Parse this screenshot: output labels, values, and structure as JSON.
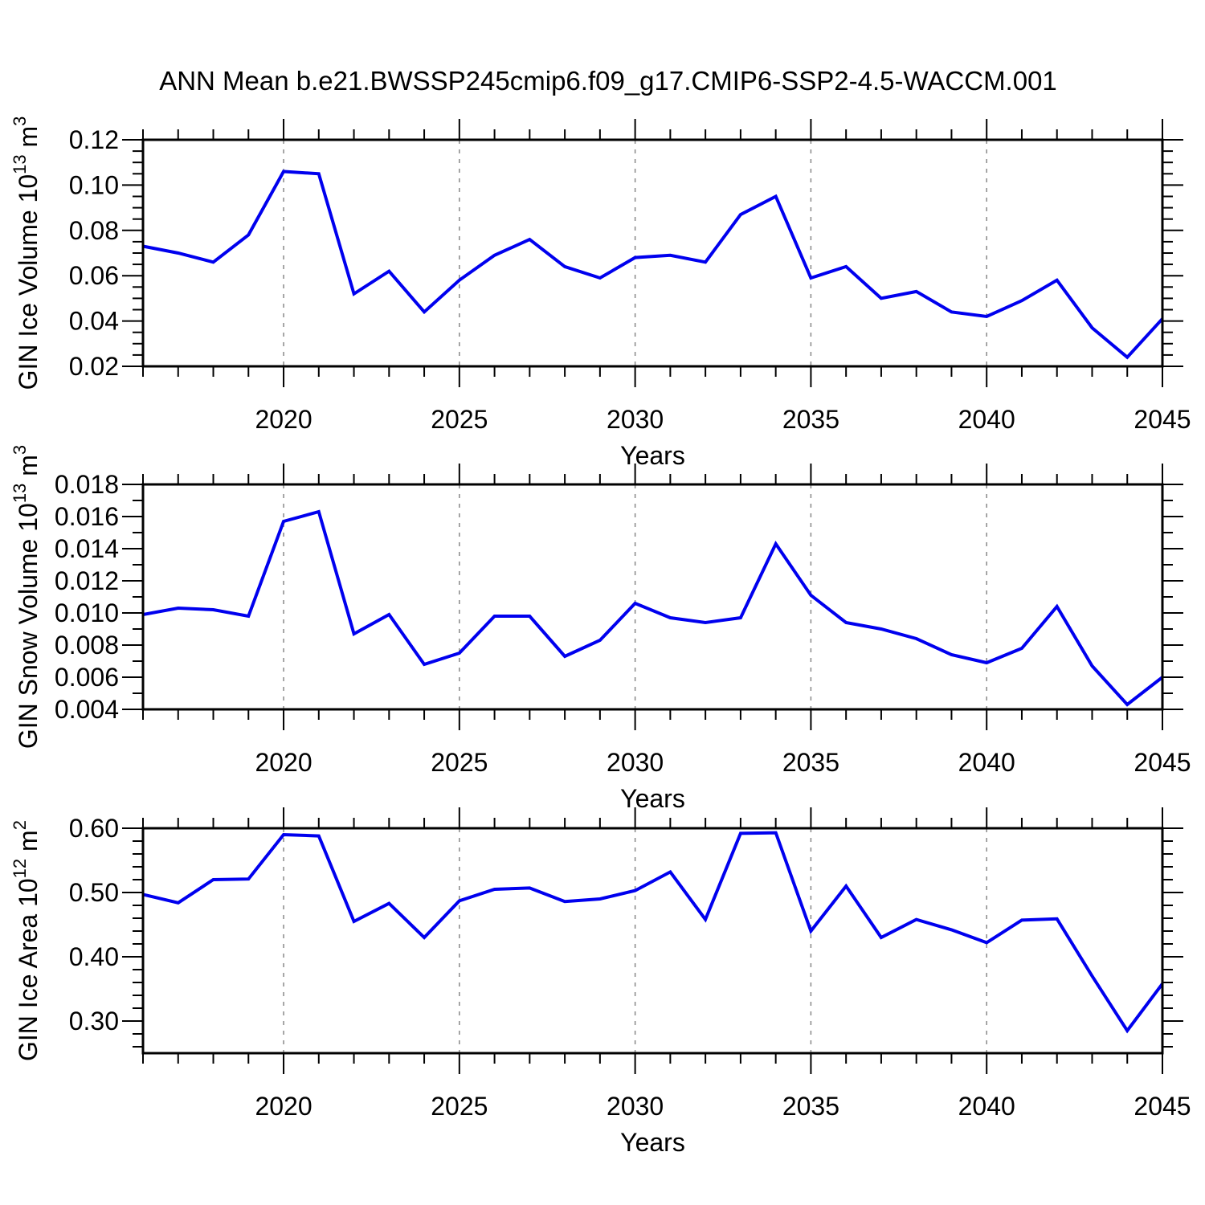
{
  "title": "ANN Mean b.e21.BWSSP245cmip6.f09_g17.CMIP6-SSP2-4.5-WACCM.001",
  "line_color": "#0000ee",
  "axis_color": "#000000",
  "grid_color": "#888888",
  "chart_data": [
    {
      "id": "ice-volume",
      "type": "line",
      "title": "",
      "ylabel": "GIN Ice Volume 10^13 m^3",
      "ylabel_parts": [
        [
          "GIN Ice Volume 10",
          false
        ],
        [
          "13",
          true
        ],
        [
          " m",
          false
        ],
        [
          "3",
          true
        ]
      ],
      "xlabel": "Years",
      "x": [
        2016,
        2017,
        2018,
        2019,
        2020,
        2021,
        2022,
        2023,
        2024,
        2025,
        2026,
        2027,
        2028,
        2029,
        2030,
        2031,
        2032,
        2033,
        2034,
        2035,
        2036,
        2037,
        2038,
        2039,
        2040,
        2041,
        2042,
        2043,
        2044,
        2045
      ],
      "values": [
        0.073,
        0.07,
        0.066,
        0.078,
        0.106,
        0.105,
        0.052,
        0.062,
        0.044,
        0.058,
        0.069,
        0.076,
        0.064,
        0.059,
        0.068,
        0.069,
        0.066,
        0.087,
        0.095,
        0.059,
        0.064,
        0.05,
        0.053,
        0.044,
        0.042,
        0.049,
        0.058,
        0.037,
        0.024,
        0.041
      ],
      "xlim": [
        2016,
        2045
      ],
      "ylim": [
        0.02,
        0.12
      ],
      "yticks": [
        0.02,
        0.04,
        0.06,
        0.08,
        0.1,
        0.12
      ],
      "ytick_labels": [
        "0.02",
        "0.04",
        "0.06",
        "0.08",
        "0.10",
        "0.12"
      ],
      "yminor_step": 0.005,
      "xticks": [
        2020,
        2025,
        2030,
        2035,
        2040,
        2045
      ],
      "xtick_labels": [
        "2020",
        "2025",
        "2030",
        "2035",
        "2040",
        "2045"
      ],
      "xminor_step": 1,
      "grid": "vertical-dashed",
      "legend": "none"
    },
    {
      "id": "snow-volume",
      "type": "line",
      "title": "",
      "ylabel": "GIN Snow Volume 10^13 m^3",
      "ylabel_parts": [
        [
          "GIN Snow Volume 10",
          false
        ],
        [
          "13",
          true
        ],
        [
          " m",
          false
        ],
        [
          "3",
          true
        ]
      ],
      "xlabel": "Years",
      "x": [
        2016,
        2017,
        2018,
        2019,
        2020,
        2021,
        2022,
        2023,
        2024,
        2025,
        2026,
        2027,
        2028,
        2029,
        2030,
        2031,
        2032,
        2033,
        2034,
        2035,
        2036,
        2037,
        2038,
        2039,
        2040,
        2041,
        2042,
        2043,
        2044,
        2045
      ],
      "values": [
        0.0099,
        0.0103,
        0.0102,
        0.0098,
        0.0157,
        0.0163,
        0.0087,
        0.0099,
        0.0068,
        0.0075,
        0.0098,
        0.0098,
        0.0073,
        0.0083,
        0.0106,
        0.0097,
        0.0094,
        0.0097,
        0.0143,
        0.0111,
        0.0094,
        0.009,
        0.0084,
        0.0074,
        0.0069,
        0.0078,
        0.0104,
        0.0067,
        0.0043,
        0.006
      ],
      "xlim": [
        2016,
        2045
      ],
      "ylim": [
        0.004,
        0.018
      ],
      "yticks": [
        0.004,
        0.006,
        0.008,
        0.01,
        0.012,
        0.014,
        0.016,
        0.018
      ],
      "ytick_labels": [
        "0.004",
        "0.006",
        "0.008",
        "0.010",
        "0.012",
        "0.014",
        "0.016",
        "0.018"
      ],
      "yminor_step": 0.001,
      "xticks": [
        2020,
        2025,
        2030,
        2035,
        2040,
        2045
      ],
      "xtick_labels": [
        "2020",
        "2025",
        "2030",
        "2035",
        "2040",
        "2045"
      ],
      "xminor_step": 1,
      "grid": "vertical-dashed",
      "legend": "none"
    },
    {
      "id": "ice-area",
      "type": "line",
      "title": "",
      "ylabel": "GIN Ice Area 10^12 m^2",
      "ylabel_parts": [
        [
          "GIN Ice Area 10",
          false
        ],
        [
          "12",
          true
        ],
        [
          " m",
          false
        ],
        [
          "2",
          true
        ]
      ],
      "xlabel": "Years",
      "x": [
        2016,
        2017,
        2018,
        2019,
        2020,
        2021,
        2022,
        2023,
        2024,
        2025,
        2026,
        2027,
        2028,
        2029,
        2030,
        2031,
        2032,
        2033,
        2034,
        2035,
        2036,
        2037,
        2038,
        2039,
        2040,
        2041,
        2042,
        2043,
        2044,
        2045
      ],
      "values": [
        0.497,
        0.484,
        0.52,
        0.521,
        0.59,
        0.588,
        0.455,
        0.483,
        0.43,
        0.487,
        0.505,
        0.507,
        0.486,
        0.49,
        0.503,
        0.532,
        0.458,
        0.592,
        0.593,
        0.44,
        0.51,
        0.43,
        0.458,
        0.442,
        0.422,
        0.457,
        0.459,
        0.37,
        0.285,
        0.358
      ],
      "xlim": [
        2016,
        2045
      ],
      "ylim": [
        0.25,
        0.6
      ],
      "yticks": [
        0.3,
        0.4,
        0.5,
        0.6
      ],
      "ytick_labels": [
        "0.30",
        "0.40",
        "0.50",
        "0.60"
      ],
      "yminor_step": 0.02,
      "xticks": [
        2020,
        2025,
        2030,
        2035,
        2040,
        2045
      ],
      "xtick_labels": [
        "2020",
        "2025",
        "2030",
        "2035",
        "2040",
        "2045"
      ],
      "xminor_step": 1,
      "grid": "vertical-dashed",
      "legend": "none"
    }
  ]
}
